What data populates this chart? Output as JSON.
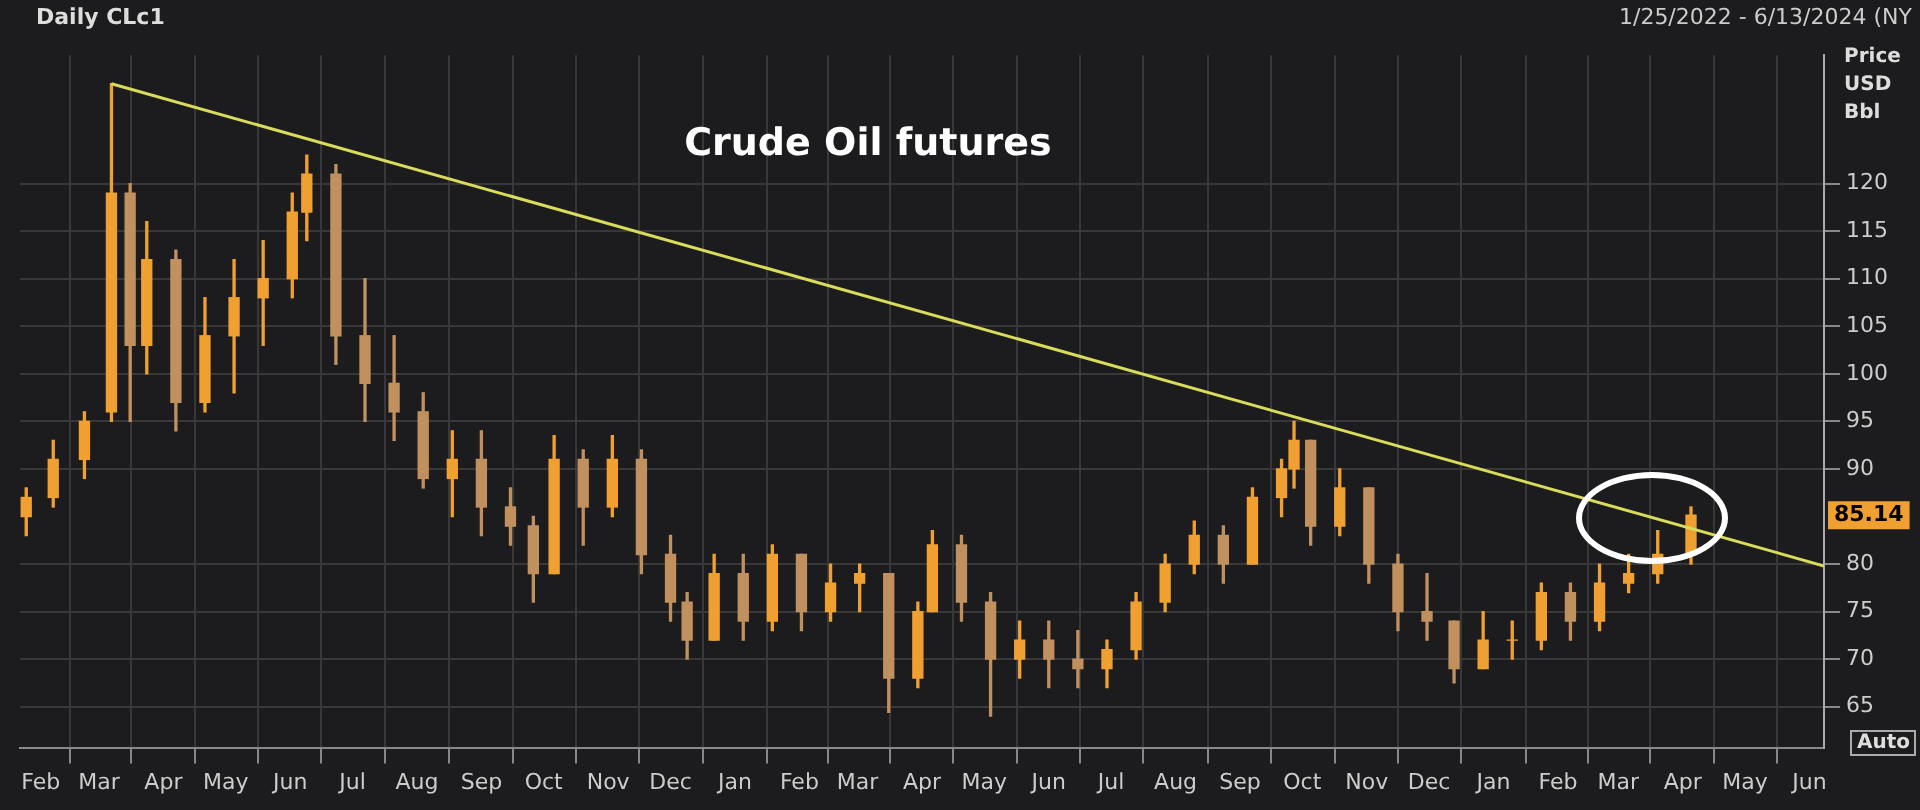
{
  "chart_data": {
    "type": "candlestick",
    "title": "Crude Oil futures",
    "subtitle": "Daily CLc1",
    "ylabel": "Price USD Bbl",
    "colors": [
      "#f0a030",
      "#f0a030",
      "#f0a030",
      "#f0a030",
      "#c0905e",
      "#f0a030",
      "#c0905e",
      "#f0a030",
      "#f0a030",
      "#f0a030",
      "#f0a030",
      "#f0a030",
      "#c0905e",
      "#c0905e",
      "#c0905e",
      "#c0905e",
      "#f0a030",
      "#c0905e",
      "#c0905e",
      "#c0905e",
      "#f0a030",
      "#c0905e",
      "#f0a030",
      "#c0905e",
      "#c0905e",
      "#c0905e",
      "#f0a030",
      "#c0905e",
      "#f0a030",
      "#c0905e",
      "#f0a030",
      "#f0a030",
      "#c0905e",
      "#f0a030",
      "#f0a030",
      "#c0905e",
      "#c0905e",
      "#f0a030",
      "#c0905e",
      "#c0905e",
      "#f0a030",
      "#f0a030",
      "#f0a030",
      "#f0a030",
      "#c0905e",
      "#f0a030",
      "#f0a030",
      "#f0a030",
      "#c0905e",
      "#f0a030",
      "#c0905e",
      "#c0905e",
      "#c0905e",
      "#c0905e",
      "#f0a030",
      "#f0a030",
      "#f0a030",
      "#c0905e",
      "#f0a030",
      "#f0a030",
      "#f0a030",
      "#f0a030"
    ],
    "x": [
      "2022-01-25",
      "2022-02-07",
      "2022-02-22",
      "2022-03-07",
      "2022-03-16",
      "2022-03-24",
      "2022-04-07",
      "2022-04-21",
      "2022-05-05",
      "2022-05-19",
      "2022-06-02",
      "2022-06-09",
      "2022-06-23",
      "2022-07-07",
      "2022-07-21",
      "2022-08-04",
      "2022-08-18",
      "2022-09-01",
      "2022-09-15",
      "2022-09-26",
      "2022-10-06",
      "2022-10-20",
      "2022-11-03",
      "2022-11-17",
      "2022-12-01",
      "2022-12-09",
      "2022-12-22",
      "2023-01-05",
      "2023-01-19",
      "2023-02-02",
      "2023-02-16",
      "2023-03-02",
      "2023-03-16",
      "2023-03-30",
      "2023-04-06",
      "2023-04-20",
      "2023-05-04",
      "2023-05-18",
      "2023-06-01",
      "2023-06-15",
      "2023-06-29",
      "2023-07-13",
      "2023-07-27",
      "2023-08-10",
      "2023-08-24",
      "2023-09-07",
      "2023-09-21",
      "2023-09-27",
      "2023-10-05",
      "2023-10-19",
      "2023-11-02",
      "2023-11-16",
      "2023-11-30",
      "2023-12-13",
      "2023-12-27",
      "2024-01-10",
      "2024-01-24",
      "2024-02-07",
      "2024-02-21",
      "2024-03-06",
      "2024-03-20",
      "2024-04-05"
    ],
    "ohlc": [
      [
        85,
        88,
        83,
        87
      ],
      [
        87,
        93,
        86,
        91
      ],
      [
        91,
        96,
        89,
        95
      ],
      [
        96,
        130.5,
        95,
        119
      ],
      [
        119,
        120,
        95,
        103
      ],
      [
        103,
        116,
        100,
        112
      ],
      [
        112,
        113,
        94,
        97
      ],
      [
        97,
        108,
        96,
        104
      ],
      [
        104,
        112,
        98,
        108
      ],
      [
        108,
        114,
        103,
        110
      ],
      [
        110,
        119,
        108,
        117
      ],
      [
        117,
        123,
        114,
        121
      ],
      [
        121,
        122,
        101,
        104
      ],
      [
        104,
        110,
        95,
        99
      ],
      [
        99,
        104,
        93,
        96
      ],
      [
        96,
        98,
        88,
        89
      ],
      [
        89,
        94,
        85,
        91
      ],
      [
        91,
        94,
        83,
        86
      ],
      [
        86,
        88,
        82,
        84
      ],
      [
        84,
        85,
        76,
        79
      ],
      [
        79,
        93.5,
        79,
        91
      ],
      [
        91,
        92,
        82,
        86
      ],
      [
        86,
        93.5,
        85,
        91
      ],
      [
        91,
        92,
        79,
        81
      ],
      [
        81,
        83,
        74,
        76
      ],
      [
        76,
        77,
        70,
        72
      ],
      [
        72,
        81,
        72,
        79
      ],
      [
        79,
        81,
        72,
        74
      ],
      [
        74,
        82,
        73,
        81
      ],
      [
        81,
        81,
        73,
        75
      ],
      [
        75,
        80,
        74,
        78
      ],
      [
        78,
        80,
        75,
        79
      ],
      [
        79,
        79,
        64.4,
        68
      ],
      [
        68,
        76,
        67,
        75
      ],
      [
        75,
        83.5,
        75,
        82
      ],
      [
        82,
        83,
        74,
        76
      ],
      [
        76,
        77,
        64,
        70
      ],
      [
        70,
        74,
        68,
        72
      ],
      [
        72,
        74,
        67,
        70
      ],
      [
        70,
        73,
        67,
        69
      ],
      [
        69,
        72,
        67,
        71
      ],
      [
        71,
        77,
        70,
        76
      ],
      [
        76,
        81,
        75,
        80
      ],
      [
        80,
        84.5,
        79,
        83
      ],
      [
        83,
        84,
        78,
        80
      ],
      [
        80,
        88,
        80,
        87
      ],
      [
        87,
        91,
        85,
        90
      ],
      [
        90,
        95,
        88,
        93
      ],
      [
        93,
        93,
        82,
        84
      ],
      [
        84,
        90,
        83,
        88
      ],
      [
        88,
        88,
        78,
        80
      ],
      [
        80,
        81,
        73,
        75
      ],
      [
        75,
        79,
        72,
        74
      ],
      [
        74,
        74,
        67.5,
        69
      ],
      [
        69,
        75,
        69,
        72
      ],
      [
        72,
        74,
        70,
        72
      ],
      [
        72,
        78,
        71,
        77
      ],
      [
        77,
        78,
        72,
        74
      ],
      [
        74,
        80,
        73,
        78
      ],
      [
        78,
        81,
        77,
        79
      ],
      [
        79,
        83.5,
        78,
        81
      ],
      [
        81,
        86,
        80,
        85.14
      ]
    ],
    "series": [
      {
        "type": "line",
        "x": [
          "2022-03-07",
          "2024-06-08"
        ],
        "values": [
          130.5,
          79.8
        ],
        "color": "#d8dc5a"
      }
    ],
    "xlim": [
      "2022-01-22",
      "2024-06-08"
    ],
    "ylim": [
      60.7,
      133.5
    ],
    "xticks": [
      {
        "value": "2022-02-01",
        "label": "Feb"
      },
      {
        "value": "2022-03-01",
        "label": "Mar"
      },
      {
        "value": "2022-04-01",
        "label": "Apr"
      },
      {
        "value": "2022-05-01",
        "label": "May"
      },
      {
        "value": "2022-06-01",
        "label": "Jun"
      },
      {
        "value": "2022-07-01",
        "label": "Jul"
      },
      {
        "value": "2022-08-01",
        "label": "Aug"
      },
      {
        "value": "2022-09-01",
        "label": "Sep"
      },
      {
        "value": "2022-10-01",
        "label": "Oct"
      },
      {
        "value": "2022-11-01",
        "label": "Nov"
      },
      {
        "value": "2022-12-01",
        "label": "Dec"
      },
      {
        "value": "2023-01-01",
        "label": "Jan"
      },
      {
        "value": "2023-02-01",
        "label": "Feb"
      },
      {
        "value": "2023-03-01",
        "label": "Mar"
      },
      {
        "value": "2023-04-01",
        "label": "Apr"
      },
      {
        "value": "2023-05-01",
        "label": "May"
      },
      {
        "value": "2023-06-01",
        "label": "Jun"
      },
      {
        "value": "2023-07-01",
        "label": "Jul"
      },
      {
        "value": "2023-08-01",
        "label": "Aug"
      },
      {
        "value": "2023-09-01",
        "label": "Sep"
      },
      {
        "value": "2023-10-01",
        "label": "Oct"
      },
      {
        "value": "2023-11-01",
        "label": "Nov"
      },
      {
        "value": "2023-12-01",
        "label": "Dec"
      },
      {
        "value": "2024-01-01",
        "label": "Jan"
      },
      {
        "value": "2024-02-01",
        "label": "Feb"
      },
      {
        "value": "2024-03-01",
        "label": "Mar"
      },
      {
        "value": "2024-04-01",
        "label": "Apr"
      },
      {
        "value": "2024-05-01",
        "label": "May"
      },
      {
        "value": "2024-06-01",
        "label": "Jun"
      }
    ],
    "yticks": [
      65,
      70,
      75,
      80,
      90,
      95,
      100,
      105,
      110,
      115,
      120
    ],
    "grid": true,
    "annotations": [
      "1/25/2022 - 6/13/2024 (NY",
      "85.14",
      "Auto"
    ]
  }
}
